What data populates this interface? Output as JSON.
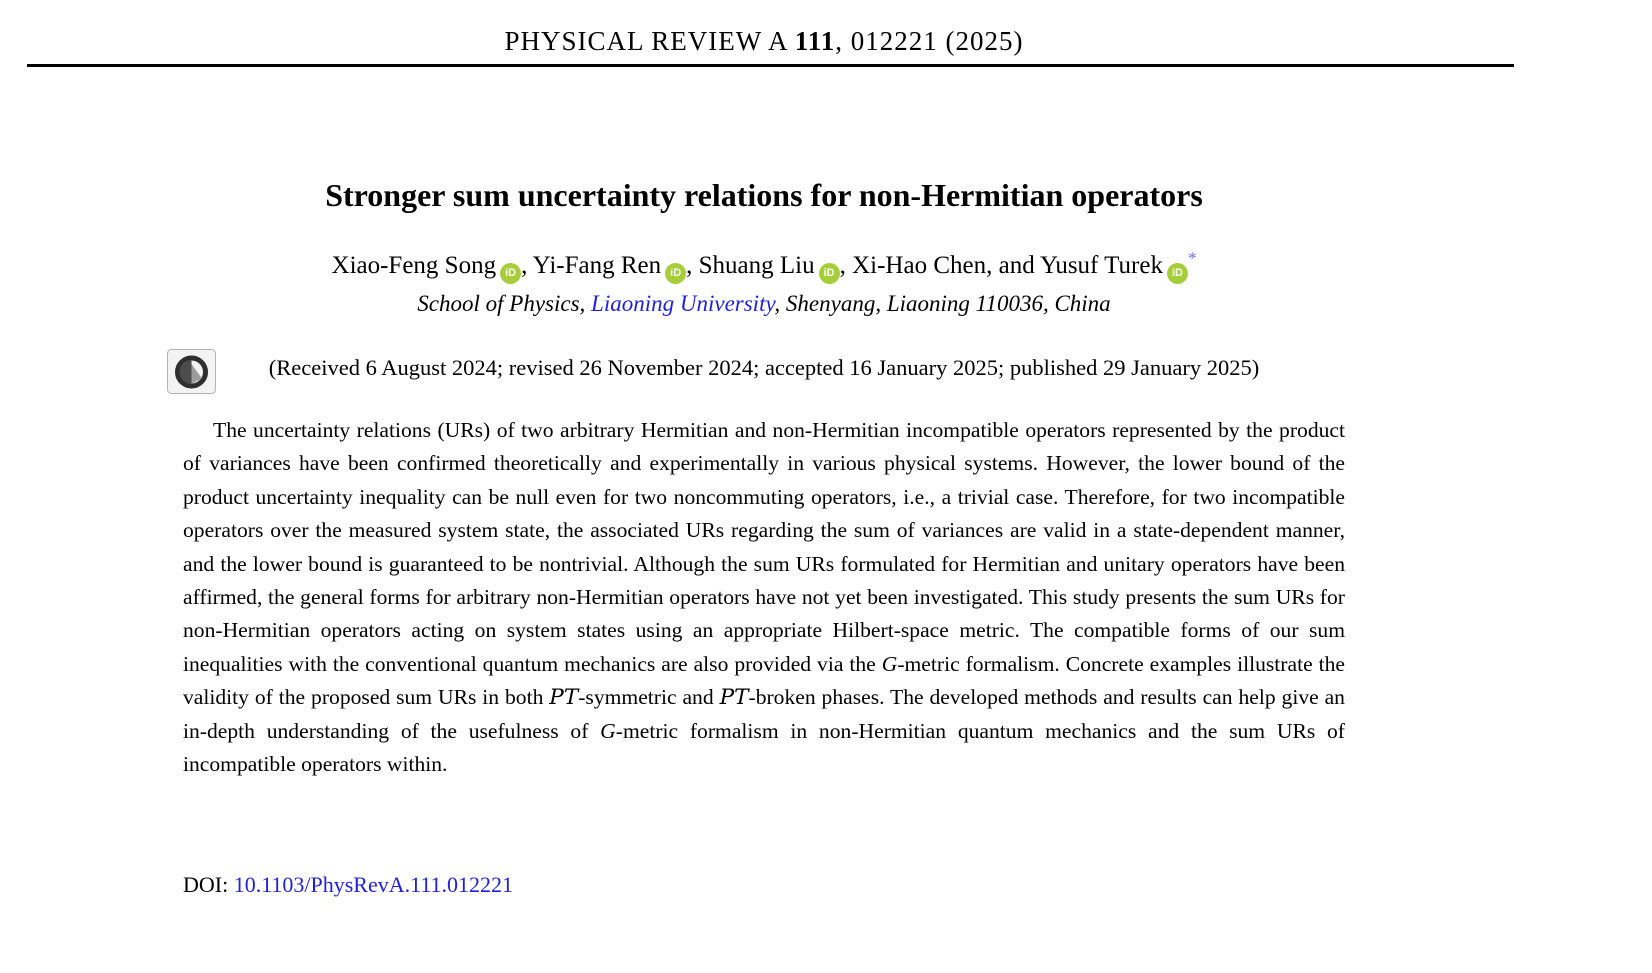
{
  "colors": {
    "link": "#1f1fde",
    "asterisk": "#6b6bf5",
    "orcid_green": "#a6ce39"
  },
  "journal": {
    "name_prefix": "PHYSICAL REVIEW A ",
    "volume": "111",
    "rest": ", 012221 (2025)"
  },
  "title": "Stronger sum uncertainty relations for non-Hermitian operators",
  "authors": {
    "orcid_icon_text": "iD",
    "items": [
      {
        "name": "Xiao-Feng Song",
        "orcid": true,
        "sep": ", "
      },
      {
        "name": "Yi-Fang Ren",
        "orcid": true,
        "sep": ", "
      },
      {
        "name": "Shuang Liu",
        "orcid": true,
        "sep": ", "
      },
      {
        "name": "Xi-Hao Chen",
        "orcid": false,
        "sep": ", and "
      },
      {
        "name": "Yusuf Turek",
        "orcid": true,
        "superscript": "*",
        "sep": ""
      }
    ]
  },
  "affiliation": {
    "segments": [
      {
        "text": "School of Physics, ",
        "link": false
      },
      {
        "text": "Liaoning University",
        "link": true
      },
      {
        "text": ", Shenyang, Liaoning 110036, China",
        "link": false
      }
    ]
  },
  "history": "(Received 6 August 2024; revised 26 November 2024; accepted 16 January 2025; published 29 January 2025)",
  "abstract": {
    "segments": [
      {
        "text": "The uncertainty relations (URs) of two arbitrary Hermitian and non-Hermitian incompatible operators represented by the product of variances have been confirmed theoretically and experimentally in various physical systems. However, the lower bound of the product uncertainty inequality can be null even for two noncommuting operators, i.e., a trivial case. Therefore, for two incompatible operators over the measured system state, the associated URs regarding the sum of variances are valid in a state-dependent manner, and the lower bound is guaranteed to be nontrivial. Although the sum URs formulated for Hermitian and unitary operators have been affirmed, the general forms for arbitrary non-Hermitian operators have not yet been investigated. This study presents the sum URs for non-Hermitian operators acting on system states using an appropriate Hilbert-space metric. The compatible forms of our sum inequalities with the conventional quantum mechanics are also provided via the ",
        "style": "normal"
      },
      {
        "text": "G",
        "style": "italic"
      },
      {
        "text": "-metric formalism. Concrete examples illustrate the validity of the proposed sum URs in both ",
        "style": "normal"
      },
      {
        "text": "PT",
        "style": "script"
      },
      {
        "text": "-symmetric and ",
        "style": "normal"
      },
      {
        "text": "PT",
        "style": "script"
      },
      {
        "text": "-broken phases. The developed methods and results can help give an in-depth understanding of the usefulness of ",
        "style": "normal"
      },
      {
        "text": "G",
        "style": "italic"
      },
      {
        "text": "-metric formalism in non-Hermitian quantum mechanics and the sum URs of incompatible operators within.",
        "style": "normal"
      }
    ]
  },
  "doi": {
    "label": "DOI: ",
    "link": "10.1103/PhysRevA.111.012221"
  }
}
